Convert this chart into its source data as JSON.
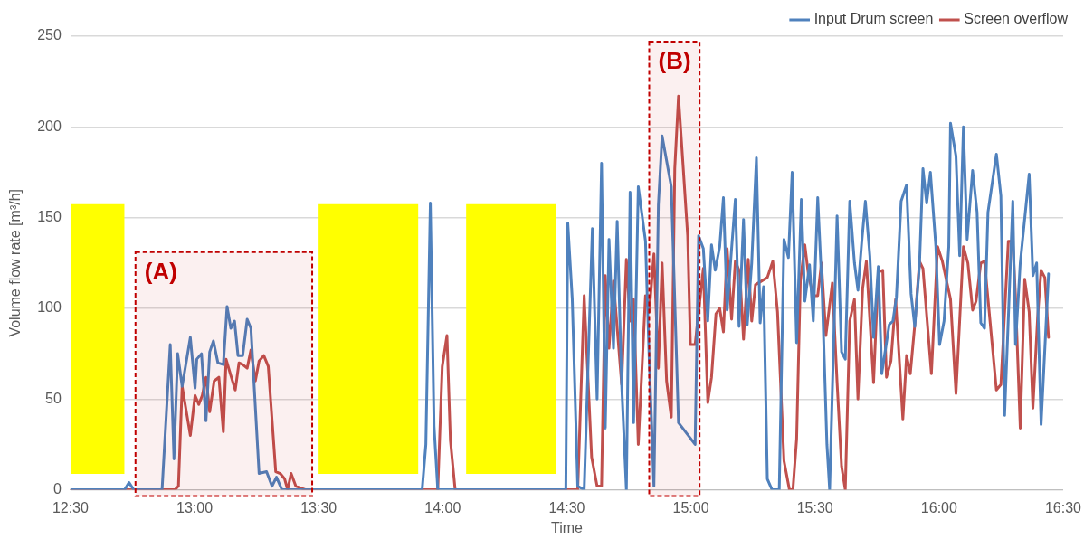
{
  "chart_data": {
    "type": "line",
    "xlabel": "Time",
    "ylabel": "Volume flow rate [m³/h]",
    "xlim": [
      12.5,
      16.5
    ],
    "xticks": [
      {
        "value": 12.5,
        "label": "12:30"
      },
      {
        "value": 13,
        "label": "13:00"
      },
      {
        "value": 13.5,
        "label": "13:30"
      },
      {
        "value": 14,
        "label": "14:00"
      },
      {
        "value": 14.5,
        "label": "14:30"
      },
      {
        "value": 15,
        "label": "15:00"
      },
      {
        "value": 15.5,
        "label": "15:30"
      },
      {
        "value": 16,
        "label": "16:00"
      },
      {
        "value": 16.5,
        "label": "16:30"
      }
    ],
    "ylim": [
      0,
      250
    ],
    "yticks": [
      0,
      50,
      100,
      150,
      200,
      250
    ],
    "grid": "y",
    "legend": "top right",
    "marker": "none",
    "line_style": "solid",
    "series": [
      {
        "name": "Input Drum screen",
        "color": "#4f81bd",
        "x": [
          12.5,
          12.718,
          12.736,
          12.755,
          12.869,
          12.902,
          12.917,
          12.932,
          12.95,
          12.983,
          13.002,
          13.009,
          13.028,
          13.046,
          13.061,
          13.076,
          13.094,
          13.116,
          13.131,
          13.146,
          13.161,
          13.175,
          13.194,
          13.212,
          13.227,
          13.26,
          13.29,
          13.312,
          13.33,
          13.352,
          13.917,
          13.932,
          13.95,
          13.965,
          13.98,
          14.496,
          14.504,
          14.522,
          14.544,
          14.57,
          14.603,
          14.622,
          14.64,
          14.655,
          14.67,
          14.688,
          14.703,
          14.721,
          14.74,
          14.755,
          14.769,
          14.788,
          14.817,
          14.832,
          14.851,
          14.869,
          14.884,
          14.921,
          14.95,
          15.017,
          15.031,
          15.05,
          15.068,
          15.083,
          15.098,
          15.116,
          15.131,
          15.146,
          15.164,
          15.179,
          15.194,
          15.212,
          15.227,
          15.245,
          15.264,
          15.279,
          15.293,
          15.308,
          15.327,
          15.356,
          15.375,
          15.393,
          15.408,
          15.426,
          15.445,
          15.459,
          15.478,
          15.493,
          15.511,
          15.529,
          15.548,
          15.559,
          15.589,
          15.607,
          15.622,
          15.64,
          15.659,
          15.673,
          15.688,
          15.703,
          15.721,
          15.736,
          15.755,
          15.769,
          15.799,
          15.814,
          15.828,
          15.847,
          15.869,
          15.887,
          15.902,
          15.921,
          15.935,
          15.95,
          15.965,
          15.987,
          16.002,
          16.02,
          16.039,
          16.046,
          16.068,
          16.083,
          16.098,
          16.113,
          16.135,
          16.153,
          16.168,
          16.183,
          16.197,
          16.231,
          16.249,
          16.264,
          16.297,
          16.308,
          16.327,
          16.363,
          16.378,
          16.393,
          16.411,
          16.441
        ],
        "values": [
          0,
          0,
          4,
          0,
          0,
          80,
          17,
          75,
          57,
          84,
          56,
          72,
          75,
          38,
          76,
          82,
          70,
          69,
          101,
          89,
          93,
          74,
          74,
          94,
          89,
          9,
          10,
          2,
          7,
          0,
          0,
          25,
          158,
          35,
          0,
          0,
          147,
          105,
          2,
          0,
          144,
          50,
          180,
          34,
          138,
          78,
          148,
          58,
          0,
          164,
          37,
          167,
          137,
          72,
          2,
          157,
          195,
          167,
          37,
          25,
          140,
          133,
          93,
          135,
          121,
          134,
          161,
          99,
          133,
          160,
          90,
          149,
          91,
          125,
          183,
          92,
          112,
          6,
          0,
          0,
          138,
          128,
          175,
          81,
          160,
          104,
          124,
          93,
          161,
          108,
          25,
          0,
          151,
          76,
          72,
          159,
          125,
          110,
          136,
          159,
          129,
          84,
          123,
          64,
          91,
          93,
          106,
          159,
          168,
          108,
          90,
          124,
          177,
          158,
          175,
          134,
          80,
          93,
          134,
          202,
          184,
          129,
          200,
          138,
          176,
          153,
          92,
          89,
          153,
          185,
          162,
          41,
          159,
          80,
          125,
          174,
          118,
          125,
          36,
          119
        ]
      },
      {
        "name": "Screen overflow",
        "color": "#c0504d",
        "x": [
          12.5,
          12.921,
          12.935,
          12.95,
          12.983,
          13.002,
          13.017,
          13.031,
          13.046,
          13.061,
          13.079,
          13.098,
          13.116,
          13.127,
          13.146,
          13.164,
          13.179,
          13.194,
          13.212,
          13.227,
          13.245,
          13.26,
          13.279,
          13.297,
          13.327,
          13.345,
          13.363,
          13.375,
          13.389,
          13.408,
          13.448,
          13.98,
          13.998,
          14.017,
          14.031,
          14.05,
          14.544,
          14.57,
          14.6,
          14.622,
          14.64,
          14.655,
          14.67,
          14.688,
          14.721,
          14.74,
          14.755,
          14.769,
          14.788,
          14.817,
          14.832,
          14.851,
          14.869,
          14.884,
          14.902,
          14.921,
          14.935,
          14.95,
          14.987,
          14.998,
          15.017,
          15.05,
          15.068,
          15.083,
          15.101,
          15.116,
          15.131,
          15.146,
          15.164,
          15.179,
          15.197,
          15.212,
          15.231,
          15.245,
          15.26,
          15.308,
          15.33,
          15.349,
          15.375,
          15.397,
          15.411,
          15.426,
          15.441,
          15.459,
          15.474,
          15.493,
          15.511,
          15.526,
          15.544,
          15.57,
          15.589,
          15.607,
          15.622,
          15.64,
          15.659,
          15.673,
          15.692,
          15.707,
          15.736,
          15.755,
          15.773,
          15.788,
          15.806,
          15.825,
          15.854,
          15.869,
          15.884,
          15.902,
          15.921,
          15.935,
          15.969,
          15.994,
          16.013,
          16.046,
          16.068,
          16.098,
          16.116,
          16.135,
          16.149,
          16.168,
          16.183,
          16.231,
          16.249,
          16.279,
          16.297,
          16.308,
          16.327,
          16.345,
          16.363,
          16.378,
          16.397,
          16.411,
          16.426,
          16.441
        ],
        "values": [
          0,
          0,
          2,
          57,
          30,
          52,
          47,
          52,
          62,
          43,
          60,
          62,
          32,
          72,
          63,
          55,
          70,
          69,
          67,
          77,
          60,
          71,
          74,
          68,
          10,
          9,
          6,
          0,
          9,
          2,
          0,
          0,
          68,
          85,
          27,
          0,
          0,
          107,
          18,
          2,
          2,
          118,
          78,
          115,
          58,
          127,
          93,
          105,
          25,
          107,
          98,
          130,
          67,
          125,
          60,
          40,
          177,
          217,
          140,
          80,
          80,
          122,
          48,
          62,
          97,
          100,
          87,
          133,
          94,
          126,
          120,
          83,
          127,
          93,
          113,
          117,
          126,
          98,
          16,
          0,
          0,
          28,
          115,
          135,
          118,
          107,
          107,
          125,
          85,
          114,
          59,
          13,
          0,
          93,
          105,
          50,
          111,
          126,
          59,
          120,
          121,
          62,
          71,
          105,
          39,
          74,
          64,
          91,
          126,
          122,
          64,
          134,
          126,
          105,
          53,
          134,
          125,
          99,
          104,
          125,
          126,
          55,
          58,
          137,
          137,
          106,
          34,
          116,
          98,
          45,
          95,
          121,
          117,
          84
        ]
      }
    ],
    "bands": [
      {
        "axis": "x",
        "from": 12.5,
        "to": 12.718,
        "color": "#ffff00"
      },
      {
        "axis": "x",
        "from": 13.496,
        "to": 13.902,
        "color": "#ffff00"
      },
      {
        "axis": "x",
        "from": 14.094,
        "to": 14.456,
        "color": "#ffff00"
      },
      {
        "axis": "x",
        "from": 12.762,
        "to": 13.474,
        "label": "(A)",
        "color": "#c00000"
      },
      {
        "axis": "x",
        "from": 14.832,
        "to": 15.035,
        "label": "(B)",
        "color": "#c00000"
      }
    ]
  }
}
